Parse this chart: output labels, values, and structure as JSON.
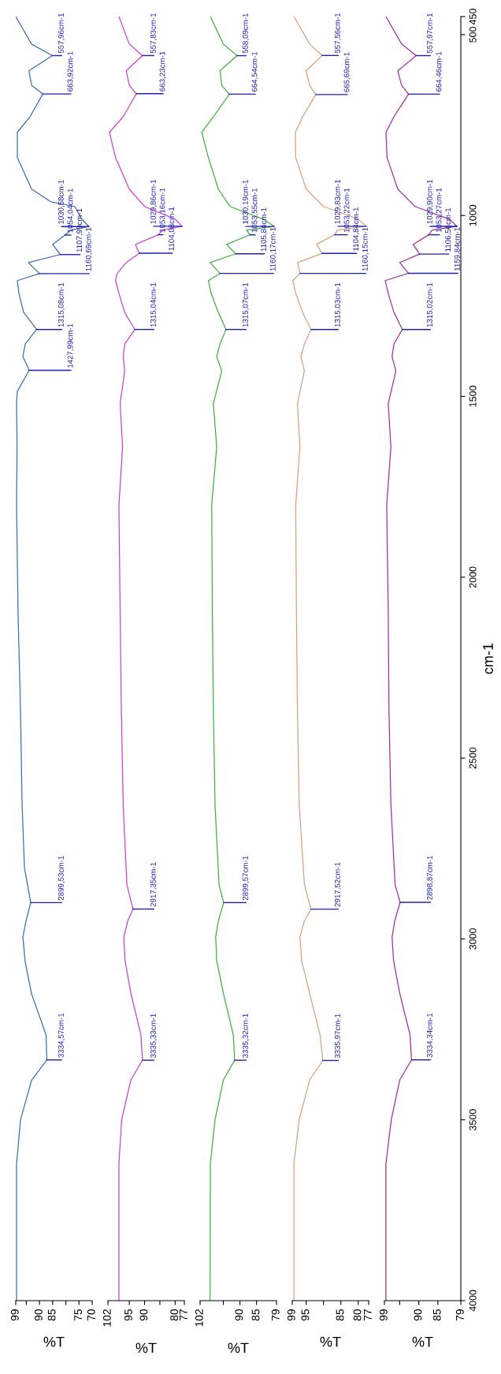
{
  "chart_data": [
    {
      "type": "line",
      "orientation": "horizontal",
      "xlabel": "%T",
      "ylim": [
        4000,
        450
      ],
      "xlim": [
        99,
        70
      ],
      "xticks": [
        99,
        {
          "value": 95,
          "label": null
        },
        90,
        85,
        {
          "value": 80,
          "label": null
        },
        75,
        70
      ],
      "tick_labels": "x",
      "series": [
        {
          "color": "#3d6fa8",
          "x": [
            4000,
            3623,
            3500,
            3391,
            3334.57,
            3265,
            3152,
            3064,
            2995,
            2950,
            2899.53,
            2803,
            2628,
            2366,
            2105,
            1800,
            1640,
            1520,
            1486,
            1427.99,
            1390,
            1355,
            1315.08,
            1268,
            1215,
            1180,
            1160.69,
            1130,
            1107.99,
            1080,
            1054.04,
            1040,
            1030.58,
            1010,
            975,
            962,
            927,
            840,
            770,
            727,
            663.92,
            640,
            600,
            557.96,
            526,
            450
          ],
          "values": [
            98.7,
            98.7,
            97.2,
            93,
            87.2,
            87.5,
            93,
            95.4,
            96.3,
            95.1,
            93.3,
            95.7,
            96.6,
            97.2,
            98.1,
            98.7,
            98.5,
            98.7,
            98.4,
            93.9,
            96.3,
            95.4,
            91.1,
            96,
            97.8,
            98.4,
            90,
            94.2,
            82.1,
            85,
            80.3,
            78,
            71.2,
            74,
            76.6,
            85.7,
            93,
            98.4,
            98.4,
            93.6,
            88.7,
            93,
            94,
            85.1,
            93,
            99
          ]
        }
      ],
      "annotations": [
        {
          "text": "3334,57cm-1",
          "x": 87.2,
          "y": 3334.57
        },
        {
          "text": "2899,53cm-1",
          "x": 93.3,
          "y": 2899.53
        },
        {
          "text": "1427,99cm-1",
          "x": 93.9,
          "y": 1427.99
        },
        {
          "text": "1315,08cm-1",
          "x": 91.1,
          "y": 1315.08
        },
        {
          "text": "1160,69cm-1",
          "x": 90,
          "y": 1160.69
        },
        {
          "text": "1107,99cm-1",
          "x": 82.1,
          "y": 1107.99
        },
        {
          "text": "1054,04cm-1",
          "x": 80.3,
          "y": 1054.04
        },
        {
          "text": "1030,58cm-1",
          "x": 71.2,
          "y": 1030.58
        },
        {
          "text": "663,92cm-1",
          "x": 88.7,
          "y": 663.92
        },
        {
          "text": "557,96cm-1",
          "x": 85.1,
          "y": 557.96
        }
      ]
    },
    {
      "type": "line",
      "orientation": "horizontal",
      "xlabel": "%T",
      "ylim": [
        4000,
        450
      ],
      "xlim": [
        102,
        77
      ],
      "xticks": [
        102,
        95,
        90,
        {
          "value": 85,
          "label": null
        },
        80,
        77
      ],
      "tick_labels": "x",
      "series": [
        {
          "color": "#d040d0",
          "x": [
            4000,
            3620,
            3500,
            3390,
            3335.33,
            3265,
            3150,
            3060,
            2995,
            2950,
            2917.35,
            2850,
            2630,
            2370,
            2100,
            1800,
            1640,
            1520,
            1430,
            1390,
            1355,
            1315.04,
            1268,
            1215,
            1180,
            1160,
            1130,
            1104.08,
            1080,
            1053.16,
            1040,
            1029.86,
            1010,
            975,
            927,
            840,
            770,
            727,
            663.23,
            640,
            600,
            557.83,
            526,
            450
          ],
          "values": [
            98.4,
            98.4,
            97.5,
            94.5,
            90.7,
            91.2,
            94.5,
            96.4,
            96.8,
            95.5,
            93.8,
            95.8,
            97,
            97.6,
            98,
            98.4,
            97.2,
            98,
            96.5,
            97,
            96.5,
            93.2,
            96.5,
            98.4,
            99.5,
            99,
            96,
            91.7,
            93,
            85.5,
            84,
            77.8,
            80,
            90,
            95,
            99.5,
            101.5,
            97,
            92.7,
            95,
            96,
            90.7,
            95,
            98.4
          ]
        }
      ],
      "annotations": [
        {
          "text": "3335,33cm-1",
          "x": 90.7,
          "y": 3335.33
        },
        {
          "text": "2917,35cm-1",
          "x": 93.8,
          "y": 2917.35
        },
        {
          "text": "1315,04cm-1",
          "x": 93.2,
          "y": 1315.04
        },
        {
          "text": "1104,08cm-1",
          "x": 91.7,
          "y": 1104.08
        },
        {
          "text": "1053,16cm-1",
          "x": 85.5,
          "y": 1053.16
        },
        {
          "text": "1029,86cm-1",
          "x": 77.8,
          "y": 1029.86
        },
        {
          "text": "663,23cm-1",
          "x": 92.7,
          "y": 663.23
        },
        {
          "text": "557,83cm-1",
          "x": 90.7,
          "y": 557.83
        }
      ]
    },
    {
      "type": "line",
      "orientation": "horizontal",
      "xlabel": "%T",
      "ylim": [
        4000,
        450
      ],
      "xlim": [
        102,
        79
      ],
      "xticks": [
        102,
        {
          "value": 95,
          "label": null
        },
        90,
        85,
        79
      ],
      "tick_labels": "x",
      "series": [
        {
          "color": "#40b040",
          "x": [
            4000,
            3620,
            3500,
            3390,
            3335.32,
            3265,
            3150,
            3060,
            2995,
            2950,
            2899.57,
            2850,
            2630,
            2370,
            2100,
            1800,
            1640,
            1520,
            1430,
            1390,
            1355,
            1315.07,
            1268,
            1215,
            1180,
            1160.17,
            1130,
            1105.84,
            1080,
            1053.55,
            1040,
            1030.19,
            1010,
            975,
            927,
            840,
            770,
            727,
            664.54,
            640,
            600,
            558.09,
            526,
            450
          ],
          "values": [
            99,
            98.9,
            97.5,
            95,
            91.6,
            92,
            95,
            97,
            97.3,
            96.5,
            94.9,
            96.3,
            97.5,
            98,
            98.3,
            98.5,
            97,
            98,
            95.5,
            97,
            96,
            94.2,
            96.5,
            98.7,
            99.5,
            96,
            99,
            91.3,
            94,
            87,
            88,
            79.7,
            83,
            93,
            96.5,
            99.5,
            101.5,
            98,
            93.2,
            95.5,
            96,
            90.9,
            95,
            98.9
          ]
        }
      ],
      "annotations": [
        {
          "text": "3335,32cm-1",
          "x": 91.6,
          "y": 3335.32
        },
        {
          "text": "2899,57cm-1",
          "x": 94.9,
          "y": 2899.57
        },
        {
          "text": "1315,07cm-1",
          "x": 94.2,
          "y": 1315.07
        },
        {
          "text": "1160,17cm-1",
          "x": 96,
          "y": 1160.17
        },
        {
          "text": "1105,84cm-1",
          "x": 91.3,
          "y": 1105.84
        },
        {
          "text": "1053,55cm-1",
          "x": 87,
          "y": 1053.55
        },
        {
          "text": "1030,19cm-1",
          "x": 79.7,
          "y": 1030.19
        },
        {
          "text": "664,54cm-1",
          "x": 93.2,
          "y": 664.54
        },
        {
          "text": "558,09cm-1",
          "x": 90.9,
          "y": 558.09
        }
      ]
    },
    {
      "type": "line",
      "orientation": "horizontal",
      "xlabel": "%T",
      "ylim": [
        4000,
        450
      ],
      "xlim": [
        99,
        77
      ],
      "xticks": [
        99,
        95,
        {
          "value": 90,
          "label": null
        },
        85,
        80,
        77
      ],
      "tick_labels": "x",
      "series": [
        {
          "color": "#d8a080",
          "x": [
            4000,
            3620,
            3500,
            3390,
            3335.97,
            3265,
            3150,
            3060,
            2995,
            2950,
            2917.52,
            2850,
            2630,
            2370,
            2100,
            1800,
            1640,
            1520,
            1430,
            1390,
            1355,
            1315.03,
            1268,
            1215,
            1180,
            1160.15,
            1130,
            1104.84,
            1080,
            1053.22,
            1040,
            1029.83,
            1010,
            975,
            927,
            840,
            770,
            727,
            665.69,
            640,
            600,
            557.56,
            526,
            450
          ],
          "values": [
            98.5,
            98.5,
            97,
            94,
            90.2,
            91,
            94,
            96.3,
            96.8,
            95.5,
            93.6,
            95.5,
            97,
            97.5,
            97.8,
            98,
            96.8,
            97.5,
            95.5,
            96.5,
            95.5,
            93.6,
            96,
            98,
            98.8,
            96.7,
            97.5,
            90.4,
            92,
            86.8,
            86,
            77.7,
            80,
            90,
            95,
            98,
            98.1,
            96,
            92.2,
            94,
            95,
            90.4,
            94,
            98.5
          ]
        }
      ],
      "annotations": [
        {
          "text": "3335,97cm-1",
          "x": 90.2,
          "y": 3335.97
        },
        {
          "text": "2917,52cm-1",
          "x": 93.6,
          "y": 2917.52
        },
        {
          "text": "1315,03cm-1",
          "x": 93.6,
          "y": 1315.03
        },
        {
          "text": "1160,15cm-1",
          "x": 96.7,
          "y": 1160.15
        },
        {
          "text": "1104,84cm-1",
          "x": 90.4,
          "y": 1104.84
        },
        {
          "text": "1053,22cm-1",
          "x": 86.8,
          "y": 1053.22
        },
        {
          "text": "1029,83cm-1",
          "x": 77.7,
          "y": 1029.83
        },
        {
          "text": "665,69cm-1",
          "x": 92.2,
          "y": 665.69
        },
        {
          "text": "557,56cm-1",
          "x": 90.4,
          "y": 557.56
        }
      ]
    },
    {
      "type": "line",
      "orientation": "horizontal",
      "xlabel": "%T",
      "ylabel": "cm-1",
      "ylim": [
        4000,
        450
      ],
      "xlim": [
        99,
        79
      ],
      "xticks": [
        99,
        {
          "value": 95,
          "label": null
        },
        90,
        85,
        79
      ],
      "yticks": [
        4000,
        3500,
        3000,
        2500,
        2000,
        1500,
        1000,
        500,
        450
      ],
      "series": [
        {
          "color": "#a0309a",
          "x": [
            4000,
            3620,
            3500,
            3390,
            3334.34,
            3265,
            3150,
            3060,
            2995,
            2950,
            2898.87,
            2850,
            2630,
            2370,
            2100,
            1800,
            1640,
            1520,
            1430,
            1390,
            1355,
            1315.02,
            1268,
            1215,
            1180,
            1159.84,
            1130,
            1106.56,
            1080,
            1053.27,
            1040,
            1029.9,
            1010,
            975,
            927,
            840,
            770,
            727,
            664.46,
            640,
            600,
            557.97,
            526,
            450
          ],
          "values": [
            98.6,
            98.6,
            97.2,
            95,
            91.9,
            92.3,
            95,
            96.6,
            97,
            96.3,
            94.9,
            96.2,
            97.3,
            97.8,
            98,
            98.4,
            97.3,
            98,
            96,
            97,
            96.5,
            94.3,
            96.5,
            98,
            98.8,
            92.7,
            95,
            89.8,
            91.5,
            87.4,
            86.5,
            80,
            82,
            91,
            95.5,
            98.3,
            98.6,
            96.5,
            92.7,
            94.5,
            95.5,
            90.7,
            94.5,
            98.6
          ]
        }
      ],
      "annotations": [
        {
          "text": "3334,34cm-1",
          "x": 91.9,
          "y": 3334.34
        },
        {
          "text": "2898,87cm-1",
          "x": 94.9,
          "y": 2898.87
        },
        {
          "text": "1315,02cm-1",
          "x": 94.3,
          "y": 1315.02
        },
        {
          "text": "1159,84cm-1",
          "x": 92.7,
          "y": 1159.84
        },
        {
          "text": "1106,56cm-1",
          "x": 89.8,
          "y": 1106.56
        },
        {
          "text": "1053,27cm-1",
          "x": 87.4,
          "y": 1053.27
        },
        {
          "text": "1029,90cm-1",
          "x": 80,
          "y": 1029.9
        },
        {
          "text": "664,46cm-1",
          "x": 92.7,
          "y": 664.46
        },
        {
          "text": "557,97cm-1",
          "x": 90.7,
          "y": 557.97
        }
      ]
    }
  ]
}
